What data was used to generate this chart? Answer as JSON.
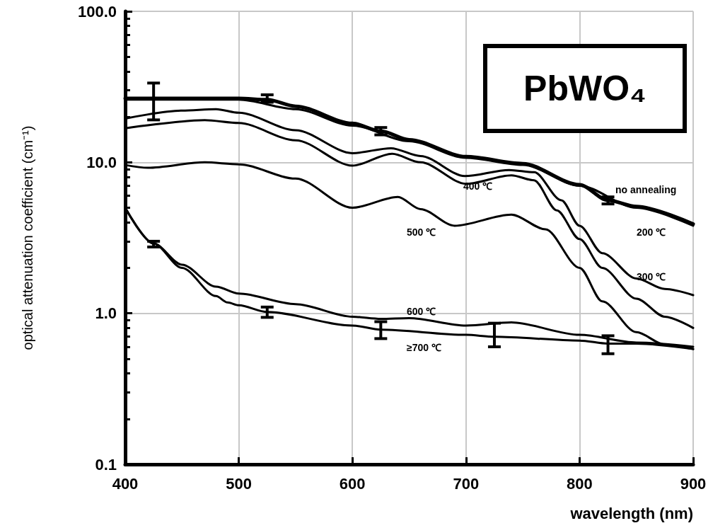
{
  "chart_data": {
    "type": "line",
    "xlabel": "wavelength (nm)",
    "ylabel": "optical attenuation coefficient (cm⁻¹)",
    "annotations": [
      "PbWO₄"
    ],
    "log": "y",
    "grid": true,
    "legend": false,
    "marker": "none",
    "line_style": "solid",
    "xlim": [
      400,
      900
    ],
    "xticks": [
      400,
      500,
      600,
      700,
      800,
      900
    ],
    "ylim": [
      0.1,
      100
    ],
    "yticks": [
      {
        "value": 0.1,
        "label": "0.1"
      },
      {
        "value": 1,
        "label": "1.0"
      },
      {
        "value": 10,
        "label": "10.0"
      },
      {
        "value": 100,
        "label": "100.0"
      }
    ],
    "series": [
      {
        "name": "no annealing",
        "color": "#000000",
        "x": [
          400,
          425,
          450,
          500,
          525,
          550,
          600,
          625,
          650,
          700,
          750,
          800,
          825,
          850,
          900
        ],
        "values": [
          26.5,
          26.5,
          26.5,
          26.5,
          26.0,
          23.5,
          18.1,
          16.1,
          14.1,
          10.9,
          9.8,
          7.1,
          5.6,
          5.1,
          3.9
        ],
        "errors": [
          null,
          [
            19.1,
            33.5
          ],
          null,
          null,
          [
            25,
            28
          ],
          null,
          null,
          [
            15.2,
            17
          ],
          null,
          null,
          null,
          null,
          [
            5.3,
            5.9
          ],
          null,
          null
        ]
      },
      {
        "name": "200 ℃",
        "color": "#000000",
        "x": [
          400,
          450,
          500,
          550,
          600,
          650,
          700,
          750,
          800,
          850,
          900
        ],
        "values": [
          26,
          26,
          26,
          22.5,
          17.5,
          13.8,
          10.7,
          9.6,
          7.0,
          5.0,
          3.8
        ]
      },
      {
        "name": "300 ℃",
        "color": "#000000",
        "x": [
          400,
          450,
          480,
          500,
          550,
          600,
          634,
          660,
          699,
          738,
          760,
          784,
          800,
          820,
          850,
          875,
          900
        ],
        "values": [
          19.5,
          22.0,
          22.5,
          21.3,
          16.3,
          11.5,
          12.4,
          11.0,
          8.1,
          8.9,
          8.6,
          5.6,
          3.8,
          2.5,
          1.7,
          1.45,
          1.32
        ]
      },
      {
        "name": "400 ℃",
        "color": "#000000",
        "x": [
          400,
          470,
          500,
          550,
          600,
          635,
          660,
          700,
          740,
          760,
          780,
          800,
          820,
          850,
          875,
          900
        ],
        "values": [
          16.8,
          19.0,
          18.2,
          14.0,
          9.5,
          11.4,
          10.0,
          7.2,
          8.2,
          7.6,
          4.8,
          3.1,
          2.0,
          1.25,
          0.95,
          0.8
        ]
      },
      {
        "name": "500 ℃",
        "color": "#000000",
        "x": [
          400,
          420,
          470,
          500,
          550,
          600,
          640,
          660,
          690,
          740,
          770,
          800,
          820,
          850,
          875,
          900
        ],
        "values": [
          9.6,
          9.2,
          10.0,
          9.7,
          7.8,
          5.0,
          5.9,
          4.9,
          3.8,
          4.5,
          3.6,
          2.0,
          1.2,
          0.75,
          0.62,
          0.58
        ]
      },
      {
        "name": "600 ℃",
        "color": "#000000",
        "x": [
          400,
          425,
          450,
          480,
          500,
          550,
          600,
          625,
          650,
          700,
          740,
          800,
          850,
          900
        ],
        "values": [
          5.0,
          2.9,
          2.1,
          1.5,
          1.35,
          1.15,
          0.95,
          0.92,
          0.93,
          0.83,
          0.87,
          0.72,
          0.64,
          0.6
        ]
      },
      {
        "name": "≥700 ℃",
        "color": "#000000",
        "x": [
          400,
          425,
          450,
          480,
          490,
          500,
          525,
          600,
          625,
          700,
          725,
          800,
          825,
          850,
          900
        ],
        "values": [
          5.0,
          2.9,
          2.0,
          1.3,
          1.18,
          1.13,
          1.02,
          0.83,
          0.78,
          0.72,
          0.7,
          0.66,
          0.63,
          0.63,
          0.58
        ],
        "errors": [
          null,
          [
            2.75,
            3.0
          ],
          null,
          null,
          null,
          null,
          [
            0.94,
            1.1
          ],
          null,
          [
            0.68,
            0.88
          ],
          null,
          [
            0.6,
            0.86
          ],
          null,
          [
            0.54,
            0.71
          ],
          null,
          null
        ]
      }
    ]
  }
}
